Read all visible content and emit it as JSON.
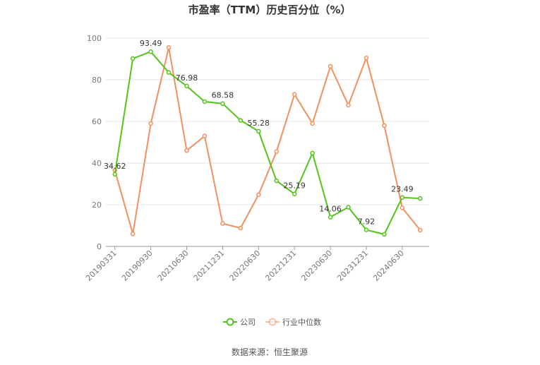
{
  "chart_data": {
    "type": "line",
    "title": "市盈率（TTM）历史百分位（%）",
    "source_label": "数据来源：恒生聚源",
    "ylim": [
      0,
      100
    ],
    "yticks": [
      0,
      20,
      40,
      60,
      80,
      100
    ],
    "grid": true,
    "legend_position": "bottom",
    "x_tick_labels": [
      "20190331",
      "20190930",
      "20210630",
      "20211231",
      "20220630",
      "20221231",
      "20230630",
      "20231231",
      "20240630"
    ],
    "x_tick_indices": [
      0,
      2,
      4,
      6,
      8,
      10,
      12,
      14,
      16
    ],
    "series": [
      {
        "name": "公司",
        "color": "#52c41a",
        "values": [
          34.62,
          90.2,
          93.49,
          83.5,
          76.98,
          69.5,
          68.58,
          60.5,
          55.28,
          31.5,
          25.19,
          44.8,
          14.06,
          18.8,
          7.92,
          5.8,
          23.49,
          23.0
        ],
        "labels": [
          {
            "index": 0,
            "text": "34.62"
          },
          {
            "index": 2,
            "text": "93.49"
          },
          {
            "index": 4,
            "text": "76.98"
          },
          {
            "index": 6,
            "text": "68.58"
          },
          {
            "index": 8,
            "text": "55.28"
          },
          {
            "index": 10,
            "text": "25.19"
          },
          {
            "index": 12,
            "text": "14.06"
          },
          {
            "index": 14,
            "text": "7.92"
          },
          {
            "index": 16,
            "text": "23.49"
          }
        ]
      },
      {
        "name": "行业中位数",
        "color": "#f0905f",
        "values": [
          36.5,
          6.0,
          59.0,
          95.5,
          46.0,
          53.0,
          11.0,
          8.8,
          24.8,
          45.5,
          73.0,
          59.0,
          86.5,
          67.8,
          90.5,
          58.0,
          18.5,
          7.8
        ]
      }
    ]
  }
}
